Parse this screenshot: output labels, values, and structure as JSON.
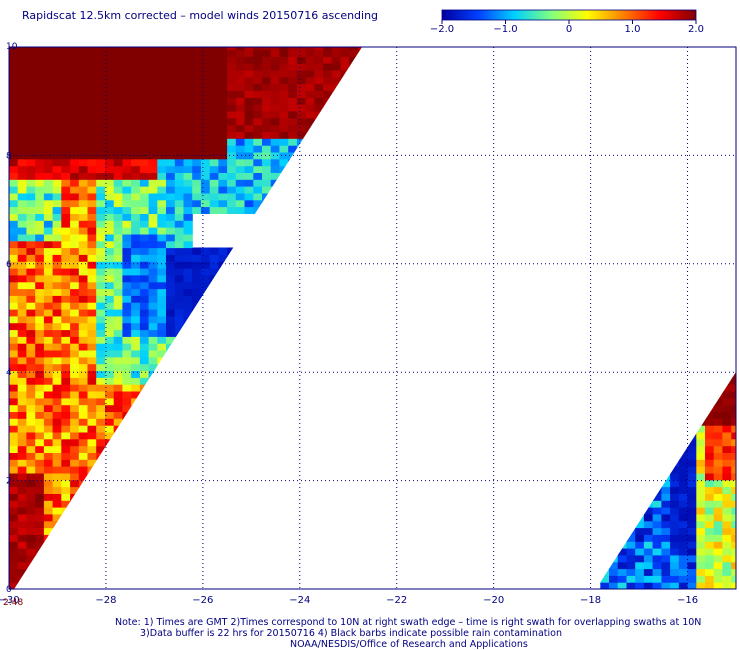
{
  "title": "Rapidscat 12.5km corrected – model winds 20150716 ascending",
  "colorbar": {
    "ticks": [
      "−2.0",
      "−1.0",
      "0",
      "1.0",
      "2.0"
    ],
    "tick_values": [
      -2.0,
      -1.0,
      0,
      1.0,
      2.0
    ],
    "stops": [
      "#0000a0",
      "#0040ff",
      "#00d0ff",
      "#80ff80",
      "#ffff00",
      "#ff8000",
      "#ff0000",
      "#800000"
    ]
  },
  "time_label": "2:48",
  "notes": {
    "line1": "Note: 1) Times are GMT 2)Times correspond to 10N at right swath edge – time is right swath for overlapping swaths at 10N",
    "line2": "3)Data buffer is 22 hrs for 20150716 4) Black barbs indicate possible rain contamination",
    "line3": "NOAA/NESDIS/Office of Research and Applications"
  },
  "chart_data": {
    "type": "heatmap",
    "title": "Rapidscat 12.5km corrected – model winds 20150716 ascending",
    "xlim": [
      -30,
      -15
    ],
    "ylim": [
      0,
      10
    ],
    "x_ticks": [
      -30,
      -28,
      -26,
      -24,
      -22,
      -20,
      -18,
      -16
    ],
    "x_tick_labels": [
      "−30",
      "−28",
      "−26",
      "−24",
      "−22",
      "−20",
      "−18",
      "−16"
    ],
    "y_ticks": [
      0,
      2,
      4,
      6,
      8,
      10
    ],
    "y_tick_labels": [
      "0",
      "2",
      "4",
      "6",
      "8",
      "10"
    ],
    "grid": "dotted",
    "value_range": [
      -2.0,
      2.0
    ],
    "swaths": [
      {
        "region": "left swath",
        "approx_values": [
          {
            "lat_range": [
              7.5,
              10
            ],
            "lon_range": [
              -30,
              -23
            ],
            "value": 2.0
          },
          {
            "lat_range": [
              6.5,
              8.0
            ],
            "lon_range": [
              -26.5,
              -24.5
            ],
            "value": -0.8
          },
          {
            "lat_range": [
              5.0,
              6.5
            ],
            "lon_range": [
              -27.5,
              -26.0
            ],
            "value": -1.9
          },
          {
            "lat_range": [
              0,
              6.5
            ],
            "lon_range": [
              -30,
              -28
            ],
            "value": 1.0
          }
        ]
      },
      {
        "region": "right swath",
        "approx_values": [
          {
            "lat_range": [
              0,
              2
            ],
            "lon_range": [
              -17.5,
              -16.0
            ],
            "value": -1.8
          },
          {
            "lat_range": [
              0,
              2
            ],
            "lon_range": [
              -16.0,
              -15.1
            ],
            "value": 0.2
          },
          {
            "lat_range": [
              2,
              4
            ],
            "lon_range": [
              -15.5,
              -15.1
            ],
            "value": 1.7
          }
        ]
      }
    ]
  }
}
